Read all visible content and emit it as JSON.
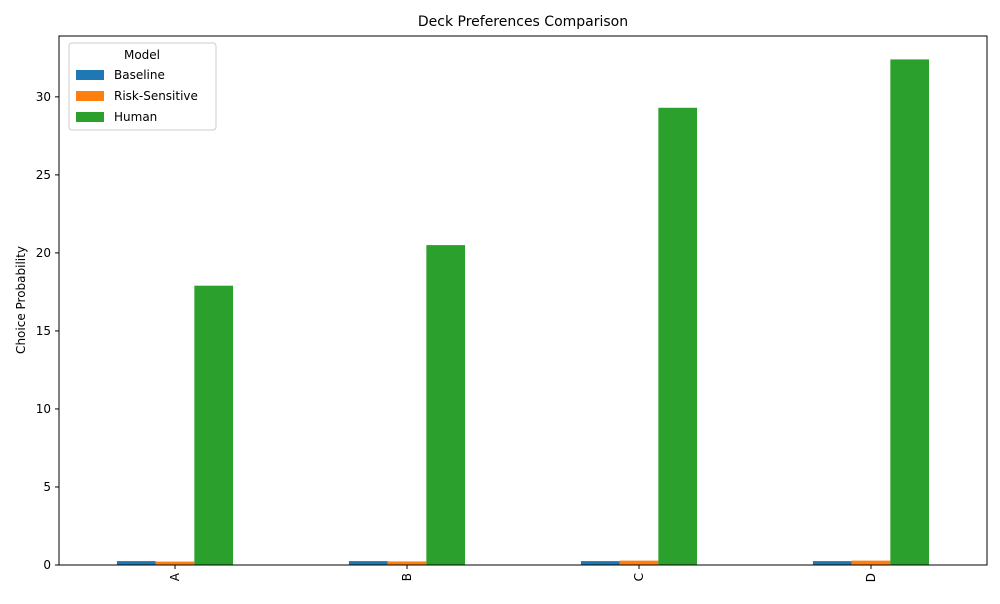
{
  "chart_data": {
    "type": "bar",
    "title": "Deck Preferences Comparison",
    "xlabel": "",
    "ylabel": "Choice Probability",
    "categories": [
      "A",
      "B",
      "C",
      "D"
    ],
    "ylim": [
      0,
      33.9
    ],
    "yticks": [
      0,
      5,
      10,
      15,
      20,
      25,
      30
    ],
    "legend": {
      "title": "Model",
      "position": "top-left"
    },
    "grid": false,
    "series": [
      {
        "name": "Baseline",
        "color": "#1f77b4",
        "values": [
          0.25,
          0.25,
          0.25,
          0.25
        ]
      },
      {
        "name": "Risk-Sensitive",
        "color": "#ff7f0e",
        "values": [
          0.22,
          0.23,
          0.28,
          0.28
        ]
      },
      {
        "name": "Human",
        "color": "#2ca02c",
        "values": [
          17.9,
          20.5,
          29.3,
          32.4
        ]
      }
    ]
  }
}
